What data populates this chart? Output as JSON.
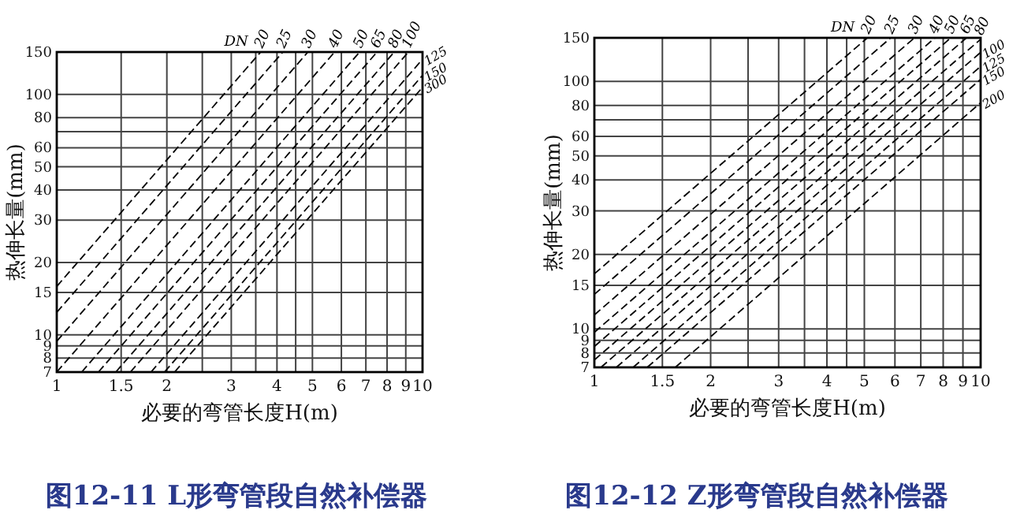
{
  "chart_data": [
    {
      "type": "line",
      "title": "图12-11 L形弯管段自然补偿器",
      "xlabel": "必要的弯管长度H(m)",
      "ylabel": "热伸长量(mm)",
      "legend_title": "DN",
      "log": "xy",
      "grid": true,
      "line_style": "dashed",
      "xlim": [
        1,
        10
      ],
      "ylim": [
        7,
        150
      ],
      "xticks": [
        1,
        1.5,
        2,
        {
          "value": 2.5,
          "label": null
        },
        3,
        {
          "value": 3.5,
          "label": null
        },
        4,
        {
          "value": 4.5,
          "label": null
        },
        5,
        6,
        7,
        8,
        9,
        10
      ],
      "yticks": [
        7,
        8,
        9,
        10,
        15,
        20,
        30,
        40,
        50,
        60,
        {
          "value": 70,
          "label": null
        },
        80,
        100,
        150
      ],
      "series": [
        {
          "name": "20",
          "color": "#000000",
          "x": [
            1,
            3.61
          ],
          "values": [
            15.9,
            150
          ]
        },
        {
          "name": "25",
          "color": "#000000",
          "x": [
            1,
            4.15
          ],
          "values": [
            12.4,
            150
          ]
        },
        {
          "name": "30",
          "color": "#000000",
          "x": [
            1,
            4.86
          ],
          "values": [
            9.4,
            150
          ]
        },
        {
          "name": "40",
          "color": "#000000",
          "x": [
            1,
            5.75
          ],
          "values": [
            7,
            150
          ]
        },
        {
          "name": "50",
          "color": "#000000",
          "x": [
            1.17,
            6.73
          ],
          "values": [
            7,
            150
          ]
        },
        {
          "name": "65",
          "color": "#000000",
          "x": [
            1.3,
            7.51
          ],
          "values": [
            7,
            150
          ]
        },
        {
          "name": "80",
          "color": "#000000",
          "x": [
            1.45,
            8.37
          ],
          "values": [
            7,
            150
          ]
        },
        {
          "name": "100",
          "color": "#000000",
          "x": [
            1.59,
            9.15
          ],
          "values": [
            7,
            150
          ]
        },
        {
          "name": "125",
          "color": "#000000",
          "x": [
            1.81,
            10
          ],
          "values": [
            7,
            140
          ]
        },
        {
          "name": "150",
          "color": "#000000",
          "x": [
            1.97,
            10
          ],
          "values": [
            7,
            120
          ]
        },
        {
          "name": "300",
          "color": "#000000",
          "x": [
            2.1,
            10
          ],
          "values": [
            7,
            107
          ]
        }
      ]
    },
    {
      "type": "line",
      "title": "图12-12 Z形弯管段自然补偿器",
      "xlabel": "必要的弯管长度H(m)",
      "ylabel": "热伸长量(mm)",
      "legend_title": "DN",
      "log": "xy",
      "grid": true,
      "line_style": "dashed",
      "xlim": [
        1,
        10
      ],
      "ylim": [
        7,
        150
      ],
      "xticks": [
        1,
        1.5,
        2,
        {
          "value": 2.5,
          "label": null
        },
        3,
        {
          "value": 3.5,
          "label": null
        },
        4,
        {
          "value": 4.5,
          "label": null
        },
        5,
        6,
        7,
        8,
        9,
        10
      ],
      "yticks": [
        7,
        8,
        9,
        10,
        15,
        20,
        30,
        40,
        50,
        60,
        {
          "value": 70,
          "label": null
        },
        80,
        100,
        150
      ],
      "series": [
        {
          "name": "20",
          "color": "#000000",
          "x": [
            1,
            5.09
          ],
          "values": [
            16.7,
            150
          ]
        },
        {
          "name": "25",
          "color": "#000000",
          "x": [
            1,
            5.85
          ],
          "values": [
            13.8,
            150
          ]
        },
        {
          "name": "30",
          "color": "#000000",
          "x": [
            1,
            6.74
          ],
          "values": [
            11.4,
            150
          ]
        },
        {
          "name": "40",
          "color": "#000000",
          "x": [
            1,
            7.62
          ],
          "values": [
            9.7,
            150
          ]
        },
        {
          "name": "50",
          "color": "#000000",
          "x": [
            1,
            8.37
          ],
          "values": [
            8.5,
            150
          ]
        },
        {
          "name": "65",
          "color": "#000000",
          "x": [
            1,
            9.19
          ],
          "values": [
            7.5,
            150
          ]
        },
        {
          "name": "80",
          "color": "#000000",
          "x": [
            1.04,
            10
          ],
          "values": [
            7,
            148
          ]
        },
        {
          "name": "100",
          "color": "#000000",
          "x": [
            1.14,
            10
          ],
          "values": [
            7,
            131
          ]
        },
        {
          "name": "125",
          "color": "#000000",
          "x": [
            1.26,
            10
          ],
          "values": [
            7,
            115
          ]
        },
        {
          "name": "150",
          "color": "#000000",
          "x": [
            1.37,
            10
          ],
          "values": [
            7,
            102
          ]
        },
        {
          "name": "200",
          "color": "#000000",
          "x": [
            1.62,
            10
          ],
          "values": [
            7,
            82
          ]
        }
      ]
    }
  ]
}
